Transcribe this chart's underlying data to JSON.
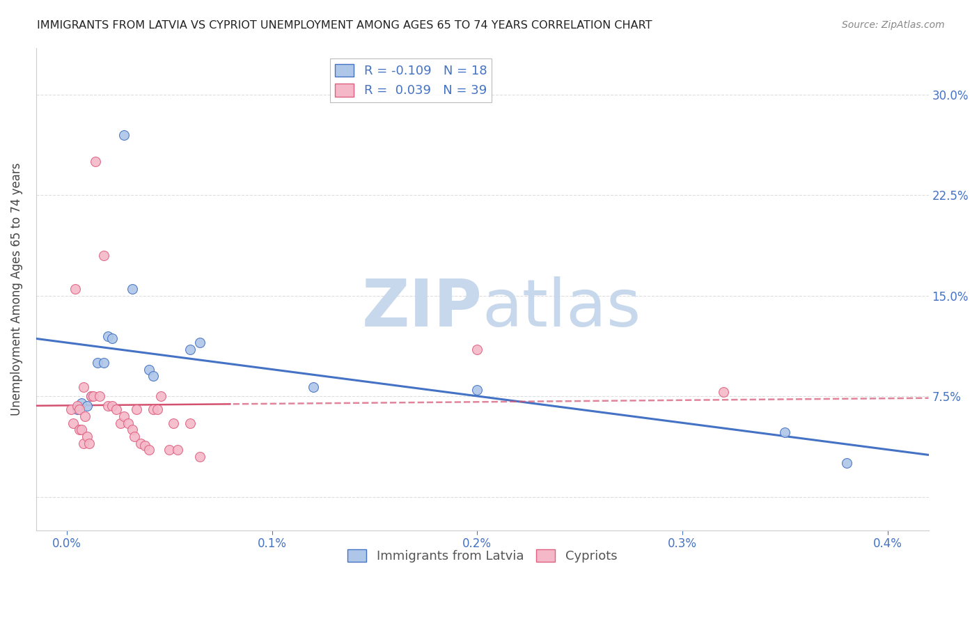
{
  "title": "IMMIGRANTS FROM LATVIA VS CYPRIOT UNEMPLOYMENT AMONG AGES 65 TO 74 YEARS CORRELATION CHART",
  "source": "Source: ZipAtlas.com",
  "ylabel": "Unemployment Among Ages 65 to 74 years",
  "legend_r_blue": "-0.109",
  "legend_n_blue": "18",
  "legend_r_pink": "0.039",
  "legend_n_pink": "39",
  "blue_scatter": [
    [
      5e-05,
      0.065
    ],
    [
      7e-05,
      0.07
    ],
    [
      0.0001,
      0.068
    ],
    [
      0.00012,
      0.075
    ],
    [
      0.00015,
      0.1
    ],
    [
      0.00018,
      0.1
    ],
    [
      0.0002,
      0.12
    ],
    [
      0.00022,
      0.118
    ],
    [
      0.00028,
      0.27
    ],
    [
      0.00032,
      0.155
    ],
    [
      0.0004,
      0.095
    ],
    [
      0.00042,
      0.09
    ],
    [
      0.0006,
      0.11
    ],
    [
      0.00065,
      0.115
    ],
    [
      0.0012,
      0.082
    ],
    [
      0.002,
      0.08
    ],
    [
      0.0035,
      0.048
    ],
    [
      0.0038,
      0.025
    ]
  ],
  "pink_scatter": [
    [
      2e-05,
      0.065
    ],
    [
      3e-05,
      0.055
    ],
    [
      4e-05,
      0.155
    ],
    [
      5e-05,
      0.068
    ],
    [
      6e-05,
      0.065
    ],
    [
      6e-05,
      0.05
    ],
    [
      7e-05,
      0.05
    ],
    [
      8e-05,
      0.082
    ],
    [
      8e-05,
      0.04
    ],
    [
      9e-05,
      0.06
    ],
    [
      0.0001,
      0.045
    ],
    [
      0.00011,
      0.04
    ],
    [
      0.00012,
      0.075
    ],
    [
      0.00013,
      0.075
    ],
    [
      0.00014,
      0.25
    ],
    [
      0.00016,
      0.075
    ],
    [
      0.00018,
      0.18
    ],
    [
      0.0002,
      0.068
    ],
    [
      0.00022,
      0.068
    ],
    [
      0.00024,
      0.065
    ],
    [
      0.00026,
      0.055
    ],
    [
      0.00028,
      0.06
    ],
    [
      0.0003,
      0.055
    ],
    [
      0.00032,
      0.05
    ],
    [
      0.00033,
      0.045
    ],
    [
      0.00034,
      0.065
    ],
    [
      0.00036,
      0.04
    ],
    [
      0.00038,
      0.038
    ],
    [
      0.0004,
      0.035
    ],
    [
      0.00042,
      0.065
    ],
    [
      0.00044,
      0.065
    ],
    [
      0.00046,
      0.075
    ],
    [
      0.0005,
      0.035
    ],
    [
      0.00052,
      0.055
    ],
    [
      0.00054,
      0.035
    ],
    [
      0.0006,
      0.055
    ],
    [
      0.00065,
      0.03
    ],
    [
      0.002,
      0.11
    ],
    [
      0.0032,
      0.078
    ]
  ],
  "blue_color": "#aec6e8",
  "blue_line_color": "#4472c4",
  "pink_color": "#f4b8c8",
  "pink_line_color": "#e06080",
  "pink_line_color2": "#d45070",
  "watermark_color": "#c8d8ec",
  "background_color": "#ffffff",
  "grid_color": "#dddddd",
  "tick_color": "#4472c4",
  "title_color": "#222222",
  "marker_size": 100,
  "xlim": [
    -0.00015,
    0.0042
  ],
  "ylim": [
    -0.025,
    0.335
  ],
  "yticks": [
    0.0,
    0.075,
    0.15,
    0.225,
    0.3
  ],
  "xticks": [
    0.0,
    0.001,
    0.002,
    0.003,
    0.004
  ]
}
